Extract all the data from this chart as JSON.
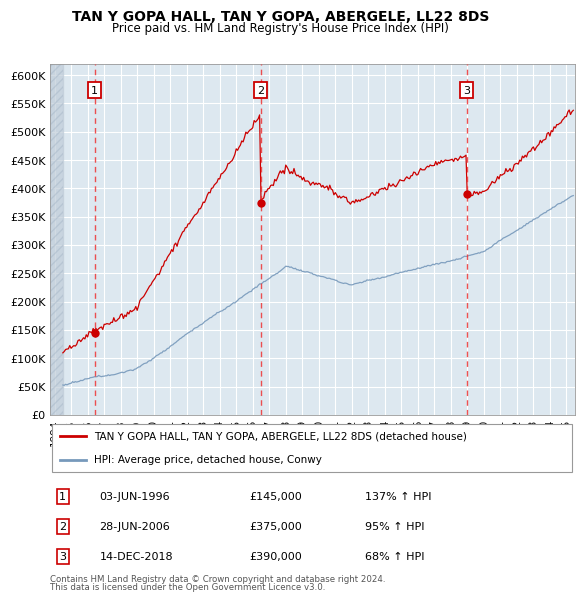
{
  "title": "TAN Y GOPA HALL, TAN Y GOPA, ABERGELE, LL22 8DS",
  "subtitle": "Price paid vs. HM Land Registry's House Price Index (HPI)",
  "xlim": [
    1993.7,
    2025.5
  ],
  "ylim": [
    0,
    620000
  ],
  "yticks": [
    0,
    50000,
    100000,
    150000,
    200000,
    250000,
    300000,
    350000,
    400000,
    450000,
    500000,
    550000,
    600000
  ],
  "ytick_labels": [
    "£0",
    "£50K",
    "£100K",
    "£150K",
    "£200K",
    "£250K",
    "£300K",
    "£350K",
    "£400K",
    "£450K",
    "£500K",
    "£550K",
    "£600K"
  ],
  "xticks": [
    1994,
    1995,
    1996,
    1997,
    1998,
    1999,
    2000,
    2001,
    2002,
    2003,
    2004,
    2005,
    2006,
    2007,
    2008,
    2009,
    2010,
    2011,
    2012,
    2013,
    2014,
    2015,
    2016,
    2017,
    2018,
    2019,
    2020,
    2021,
    2022,
    2023,
    2024,
    2025
  ],
  "transactions": [
    {
      "num": 1,
      "date": "03-JUN-1996",
      "year": 1996.42,
      "price": 145000,
      "hpi_pct": "137% ↑ HPI"
    },
    {
      "num": 2,
      "date": "28-JUN-2006",
      "year": 2006.49,
      "price": 375000,
      "hpi_pct": "95% ↑ HPI"
    },
    {
      "num": 3,
      "date": "14-DEC-2018",
      "year": 2018.95,
      "price": 390000,
      "hpi_pct": "68% ↑ HPI"
    }
  ],
  "property_line_color": "#cc0000",
  "hpi_line_color": "#7799bb",
  "vline_color": "#ee3333",
  "dot_color": "#cc0000",
  "plot_bg": "#dde8f0",
  "grid_color": "#ffffff",
  "legend_label_property": "TAN Y GOPA HALL, TAN Y GOPA, ABERGELE, LL22 8DS (detached house)",
  "legend_label_hpi": "HPI: Average price, detached house, Conwy",
  "footnote1": "Contains HM Land Registry data © Crown copyright and database right 2024.",
  "footnote2": "This data is licensed under the Open Government Licence v3.0."
}
